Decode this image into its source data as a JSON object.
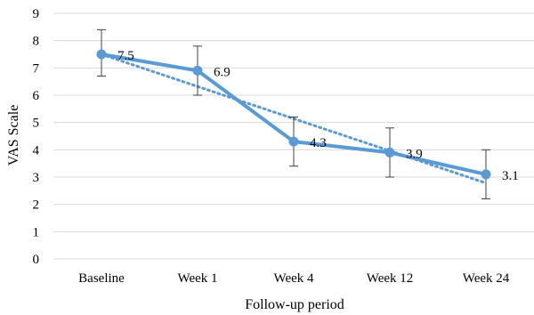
{
  "chart_data": {
    "type": "line",
    "categories": [
      "Baseline",
      "Week 1",
      "Week 4",
      "Week 12",
      "Week 24"
    ],
    "series": [
      {
        "values": [
          7.5,
          6.9,
          4.3,
          3.9,
          3.1
        ],
        "error_upper": [
          8.4,
          7.8,
          5.2,
          4.8,
          4.0
        ],
        "error_lower": [
          6.7,
          6.0,
          3.4,
          3.0,
          2.2
        ],
        "color": "#5b9bd5"
      }
    ],
    "data_labels": [
      "7.5",
      "6.9",
      "4.3",
      "3.9",
      "3.1"
    ],
    "trendline": {
      "type": "linear",
      "style": "dotted",
      "color": "#5b9bd5"
    },
    "xlabel": "Follow-up period",
    "ylabel": "VAS Scale",
    "ylim": [
      0,
      9
    ],
    "yticks": [
      "0",
      "1",
      "2",
      "3",
      "4",
      "5",
      "6",
      "7",
      "8",
      "9"
    ],
    "grid": true,
    "grid_color": "#d9d9d9",
    "legend": "none"
  }
}
